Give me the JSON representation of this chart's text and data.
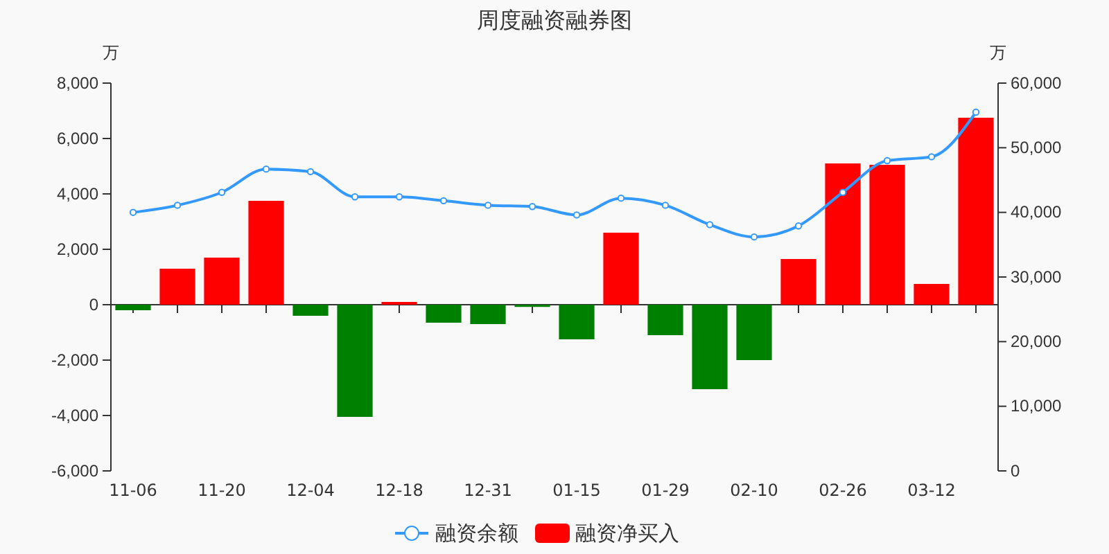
{
  "chart_data": {
    "type": "bar",
    "title": "周度融资融券图",
    "ylabel": "万",
    "y2label": "万",
    "categories": [
      "11-06",
      null,
      "11-20",
      null,
      "12-04",
      null,
      "12-18",
      null,
      "12-31",
      null,
      "01-15",
      null,
      "01-29",
      null,
      "02-10",
      null,
      "02-26",
      null,
      "03-12",
      null
    ],
    "series": [
      {
        "name": "融资余额",
        "type": "line",
        "axis": "y2",
        "color": "#3399ff",
        "marker": "circle",
        "values": [
          40000,
          41100,
          43100,
          46700,
          46300,
          42400,
          42400,
          41800,
          41100,
          40900,
          39600,
          42200,
          41100,
          38100,
          36200,
          37900,
          43100,
          48000,
          48600,
          55500
        ]
      },
      {
        "name": "融资净买入",
        "color": "#ff0000",
        "colors": [
          "#008000",
          "#ff0000",
          "#ff0000",
          "#ff0000",
          "#008000",
          "#008000",
          "#ff0000",
          "#008000",
          "#008000",
          "#008000",
          "#008000",
          "#ff0000",
          "#008000",
          "#008000",
          "#008000",
          "#ff0000",
          "#ff0000",
          "#ff0000",
          "#ff0000",
          "#ff0000"
        ],
        "values": [
          -200,
          1300,
          1700,
          3750,
          -400,
          -4050,
          100,
          -650,
          -700,
          -80,
          -1250,
          2600,
          -1100,
          -3050,
          -2000,
          1650,
          5100,
          5050,
          750,
          6750
        ]
      }
    ],
    "ylim": [
      -6000,
      8000
    ],
    "yticks": [
      {
        "value": -6000,
        "label": "-6,000"
      },
      {
        "value": -4000,
        "label": "-4,000"
      },
      {
        "value": -2000,
        "label": "-2,000"
      },
      0,
      {
        "value": 2000,
        "label": "2,000"
      },
      {
        "value": 4000,
        "label": "4,000"
      },
      {
        "value": 6000,
        "label": "6,000"
      },
      {
        "value": 8000,
        "label": "8,000"
      }
    ],
    "y2lim": [
      0,
      60000
    ],
    "y2ticks": [
      0,
      {
        "value": 10000,
        "label": "10,000"
      },
      {
        "value": 20000,
        "label": "20,000"
      },
      {
        "value": 30000,
        "label": "30,000"
      },
      {
        "value": 40000,
        "label": "40,000"
      },
      {
        "value": 50000,
        "label": "50,000"
      },
      {
        "value": 60000,
        "label": "60,000"
      }
    ],
    "legend": "bottom"
  }
}
